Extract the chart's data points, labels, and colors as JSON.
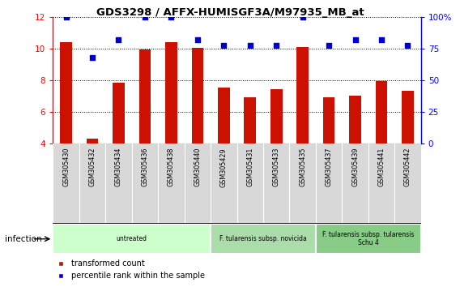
{
  "title": "GDS3298 / AFFX-HUMISGF3A/M97935_MB_at",
  "samples": [
    "GSM305430",
    "GSM305432",
    "GSM305434",
    "GSM305436",
    "GSM305438",
    "GSM305440",
    "GSM305429",
    "GSM305431",
    "GSM305433",
    "GSM305435",
    "GSM305437",
    "GSM305439",
    "GSM305441",
    "GSM305442"
  ],
  "red_bars": [
    10.4,
    4.3,
    7.85,
    9.95,
    10.4,
    10.05,
    7.55,
    6.95,
    7.45,
    10.1,
    6.95,
    7.05,
    7.95,
    7.35
  ],
  "blue_dots_pct": [
    100,
    68,
    82,
    100,
    100,
    82,
    78,
    78,
    78,
    100,
    78,
    82,
    82,
    78
  ],
  "ylim_left": [
    4,
    12
  ],
  "ylim_right": [
    0,
    100
  ],
  "yticks_left": [
    4,
    6,
    8,
    10,
    12
  ],
  "yticks_right": [
    0,
    25,
    50,
    75,
    100
  ],
  "ytick_labels_right": [
    "0",
    "25",
    "50",
    "75",
    "100%"
  ],
  "groups": [
    {
      "label": "untreated",
      "start": 0,
      "end": 6,
      "color": "#ccffcc"
    },
    {
      "label": "F. tularensis subsp. novicida",
      "start": 6,
      "end": 10,
      "color": "#aaddaa"
    },
    {
      "label": "F. tularensis subsp. tularensis\nSchu 4",
      "start": 10,
      "end": 14,
      "color": "#88cc88"
    }
  ],
  "bar_color": "#cc1100",
  "dot_color": "#0000cc",
  "tick_bg_color": "#d8d8d8",
  "legend_labels": [
    "transformed count",
    "percentile rank within the sample"
  ],
  "infection_label": "infection",
  "dot_size": 25,
  "bar_width": 0.45
}
